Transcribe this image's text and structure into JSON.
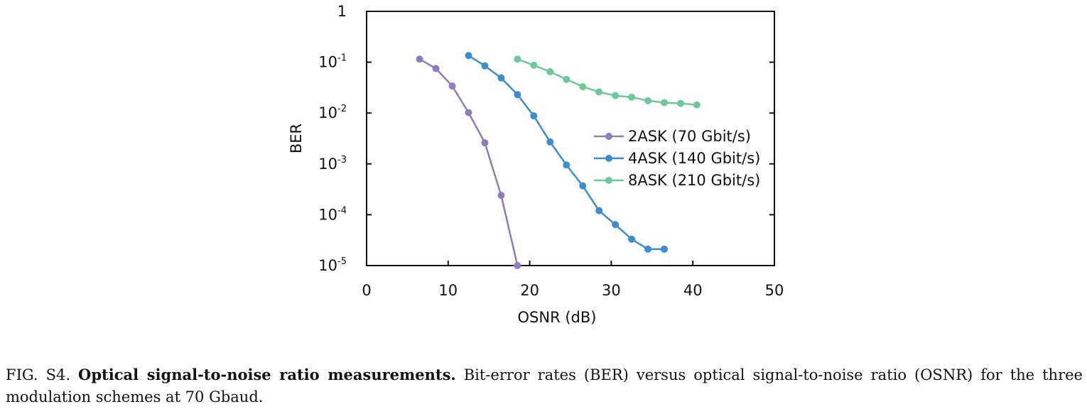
{
  "chart_data": {
    "type": "line",
    "xlabel": "OSNR (dB)",
    "ylabel": "BER",
    "xlim": [
      0,
      50
    ],
    "ylim": [
      1e-05,
      1
    ],
    "yscale": "log",
    "xticks": [
      0,
      10,
      20,
      30,
      40,
      50
    ],
    "yticks": [
      {
        "value": 1,
        "base": "1",
        "exp": ""
      },
      {
        "value": 0.1,
        "base": "10",
        "exp": "-1"
      },
      {
        "value": 0.01,
        "base": "10",
        "exp": "-2"
      },
      {
        "value": 0.001,
        "base": "10",
        "exp": "-3"
      },
      {
        "value": 0.0001,
        "base": "10",
        "exp": "-4"
      },
      {
        "value": 1e-05,
        "base": "10",
        "exp": "-5"
      }
    ],
    "grid": false,
    "legend_position": "center-right",
    "series": [
      {
        "name": "2ASK (70 Gbit/s)",
        "color": "#8e7cbb",
        "x": [
          6.5,
          8.5,
          10.5,
          12.5,
          14.5,
          16.5,
          18.5
        ],
        "y": [
          0.115,
          0.075,
          0.034,
          0.0102,
          0.0026,
          0.00024,
          1e-05
        ]
      },
      {
        "name": "4ASK (140 Gbit/s)",
        "color": "#3d8ccd",
        "x": [
          12.5,
          14.5,
          16.5,
          18.5,
          20.5,
          22.5,
          24.5,
          26.5,
          28.5,
          30.5,
          32.5,
          34.5,
          36.5
        ],
        "y": [
          0.135,
          0.085,
          0.049,
          0.023,
          0.0088,
          0.0027,
          0.00095,
          0.00037,
          0.00012,
          6.4e-05,
          3.3e-05,
          2.1e-05,
          2.1e-05
        ]
      },
      {
        "name": "8ASK (210 Gbit/s)",
        "color": "#6ec89a",
        "x": [
          18.5,
          20.5,
          22.5,
          24.5,
          26.5,
          28.5,
          30.5,
          32.5,
          34.5,
          36.5,
          38.5,
          40.5
        ],
        "y": [
          0.115,
          0.087,
          0.065,
          0.046,
          0.033,
          0.026,
          0.022,
          0.0205,
          0.0175,
          0.016,
          0.0155,
          0.0145
        ]
      }
    ]
  },
  "caption": {
    "label": "FIG. S4.",
    "title": "Optical signal-to-noise ratio measurements.",
    "text": "Bit-error rates (BER) versus optical signal-to-noise ratio (OSNR) for the three modulation schemes at 70 Gbaud."
  }
}
